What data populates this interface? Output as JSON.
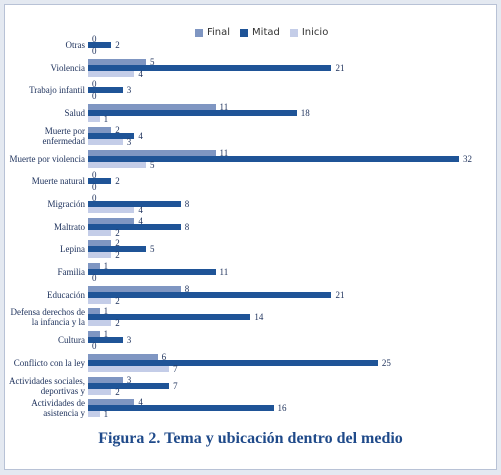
{
  "chart_data": {
    "type": "barh",
    "title": "Figura 2. Tema y ubicación dentro del medio",
    "categories": [
      "Otras",
      "Violencia",
      "Trabajo infantil",
      "Salud",
      "Muerte por enfermedad",
      "Muerte por violencia",
      "Muerte natural",
      "Migración",
      "Maltrato",
      "Lepina",
      "Familia",
      "Educación",
      "Defensa derechos de la infancia y la",
      "Cultura",
      "Conflicto con la ley",
      "Actividades sociales, deportivas y",
      "Actividades de asistencia y"
    ],
    "series": [
      {
        "name": "Final",
        "color": "#7f96c2",
        "values": [
          0,
          5,
          0,
          11,
          2,
          11,
          0,
          0,
          4,
          2,
          1,
          8,
          1,
          1,
          6,
          3,
          4
        ]
      },
      {
        "name": "Mitad",
        "color": "#1f5497",
        "values": [
          2,
          21,
          3,
          18,
          4,
          32,
          2,
          8,
          8,
          5,
          11,
          21,
          14,
          3,
          25,
          7,
          16
        ]
      },
      {
        "name": "Inicio",
        "color": "#c4cde8",
        "values": [
          0,
          4,
          0,
          1,
          3,
          5,
          0,
          4,
          2,
          2,
          0,
          2,
          2,
          0,
          7,
          2,
          1
        ]
      }
    ],
    "xlim": [
      0,
      32
    ],
    "legend": "top"
  }
}
